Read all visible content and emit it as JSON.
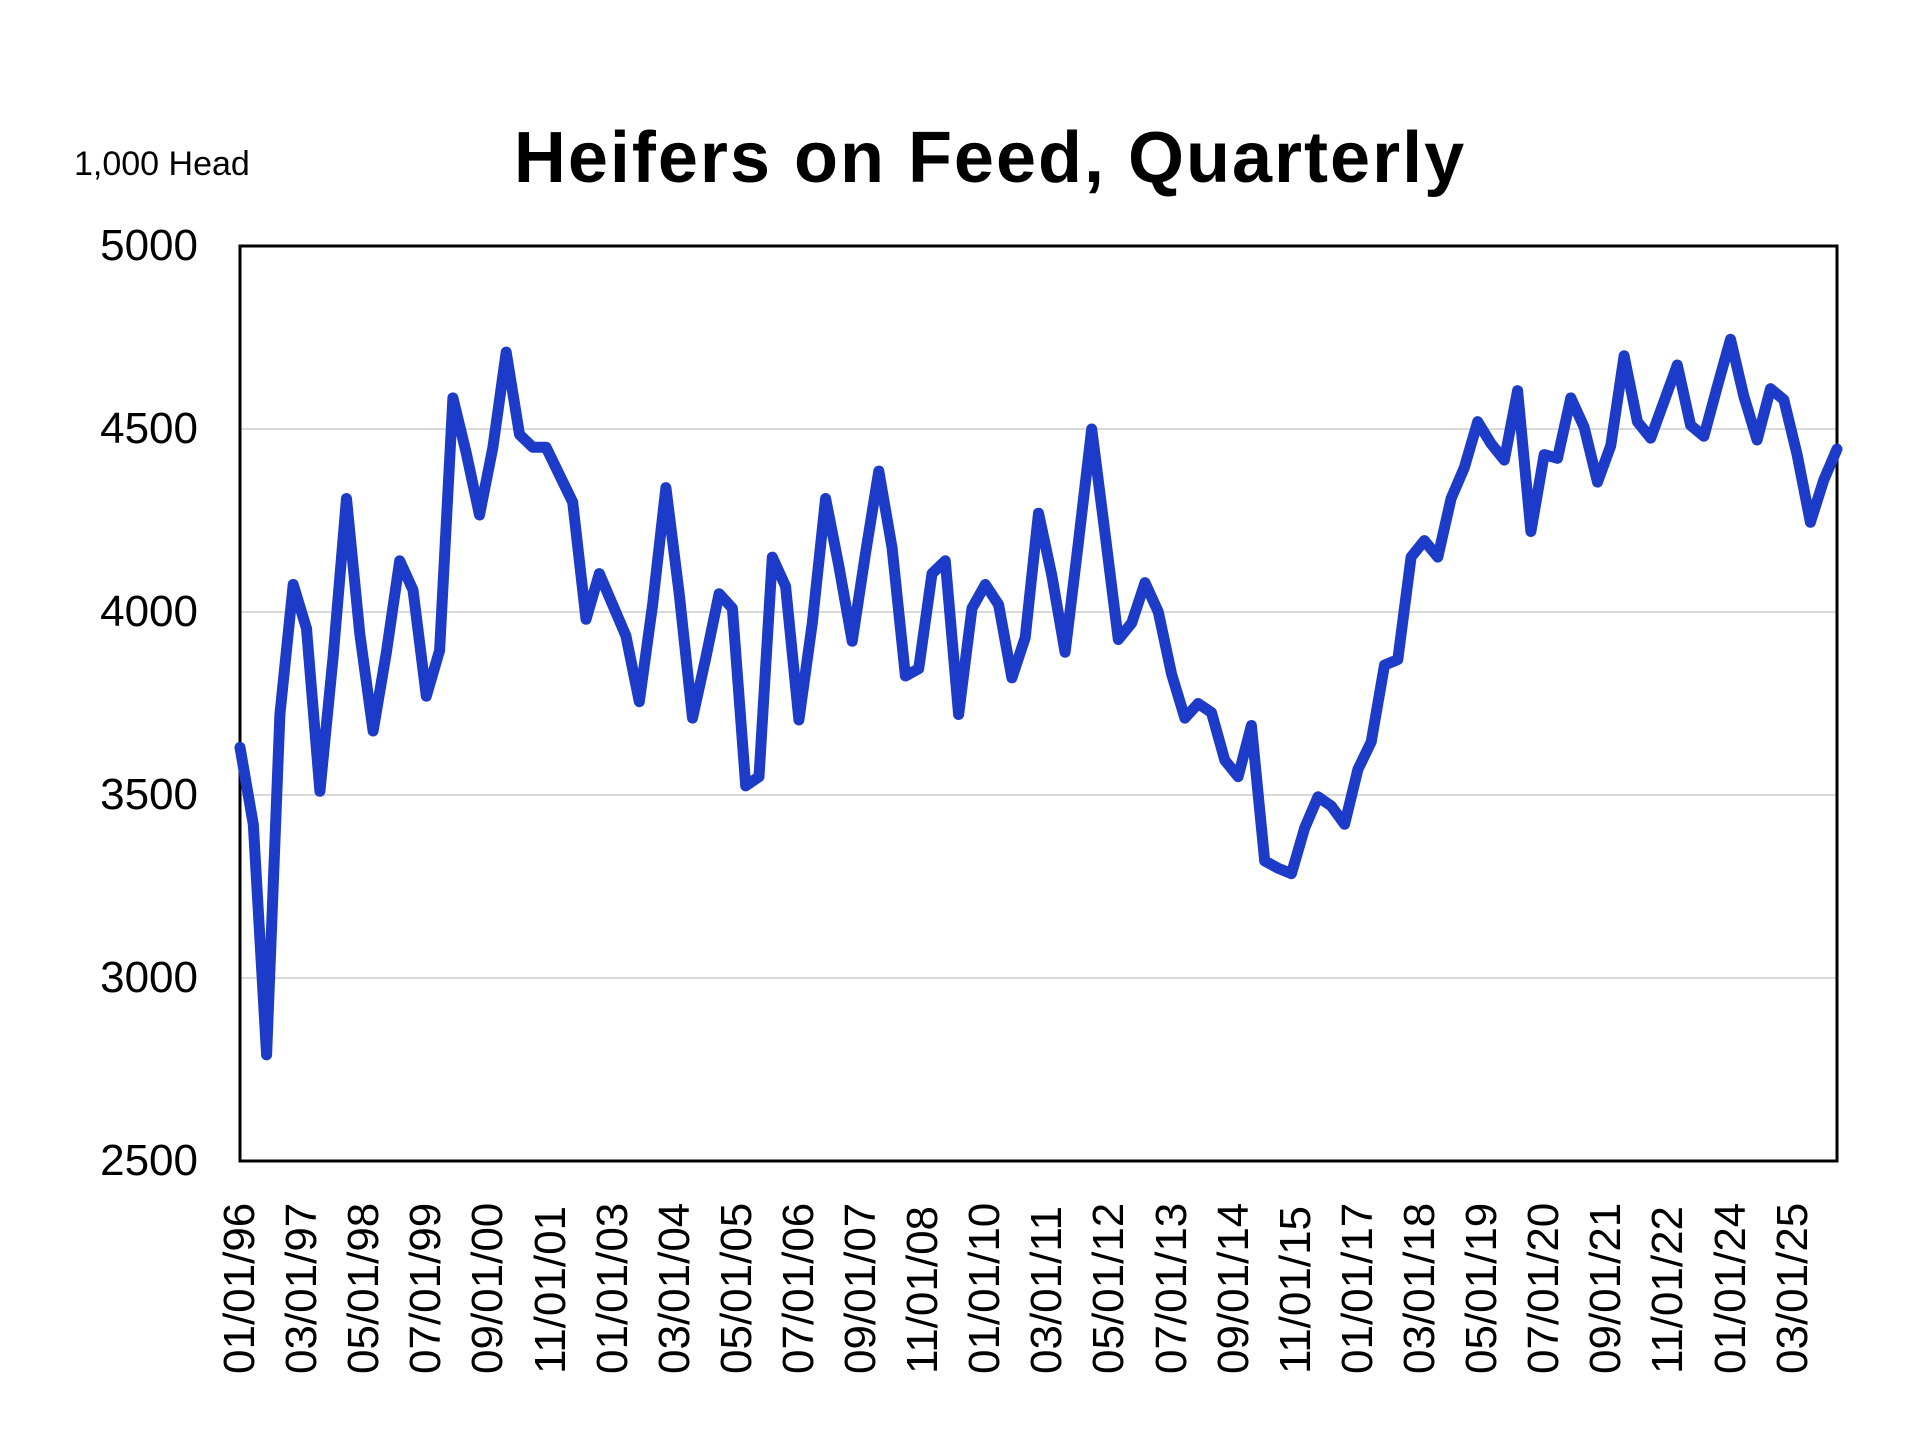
{
  "chart_data": {
    "type": "line",
    "title": "Heifers on Feed, Quarterly",
    "unit_label": "1,000 Head",
    "xlabel": "",
    "ylabel": "1,000 Head",
    "ylim": [
      2500,
      5000
    ],
    "y_ticks": [
      2500,
      3000,
      3500,
      4000,
      4500,
      5000
    ],
    "grid": "horizontal",
    "legend": "none",
    "line_color": "#1c3bc8",
    "gridline_color": "#d9d9d9",
    "border_color": "#000000",
    "x_axis": {
      "start_month_index": 0,
      "end_month_index": 360,
      "tick_interval_months": 14,
      "data_interval_months": 3
    },
    "x_tick_labels": [
      "01/01/96",
      "03/01/97",
      "05/01/98",
      "07/01/99",
      "09/01/00",
      "11/01/01",
      "01/01/03",
      "03/01/04",
      "05/01/05",
      "07/01/06",
      "09/01/07",
      "11/01/08",
      "01/01/10",
      "03/01/11",
      "05/01/12",
      "07/01/13",
      "09/01/14",
      "11/01/15",
      "01/01/17",
      "03/01/18",
      "05/01/19",
      "07/01/20",
      "09/01/21",
      "11/01/22",
      "01/01/24",
      "03/01/25"
    ],
    "series": [
      {
        "name": "Heifers on Feed",
        "dates": [
          "01/01/96",
          "04/01/96",
          "07/01/96",
          "10/01/96",
          "01/01/97",
          "04/01/97",
          "07/01/97",
          "10/01/97",
          "01/01/98",
          "04/01/98",
          "07/01/98",
          "10/01/98",
          "01/01/99",
          "04/01/99",
          "07/01/99",
          "10/01/99",
          "01/01/00",
          "04/01/00",
          "07/01/00",
          "10/01/00",
          "01/01/01",
          "04/01/01",
          "07/01/01",
          "10/01/01",
          "01/01/02",
          "04/01/02",
          "07/01/02",
          "10/01/02",
          "01/01/03",
          "04/01/03",
          "07/01/03",
          "10/01/03",
          "01/01/04",
          "04/01/04",
          "07/01/04",
          "10/01/04",
          "01/01/05",
          "04/01/05",
          "07/01/05",
          "10/01/05",
          "01/01/06",
          "04/01/06",
          "07/01/06",
          "10/01/06",
          "01/01/07",
          "04/01/07",
          "07/01/07",
          "10/01/07",
          "01/01/08",
          "04/01/08",
          "07/01/08",
          "10/01/08",
          "01/01/09",
          "04/01/09",
          "07/01/09",
          "10/01/09",
          "01/01/10",
          "04/01/10",
          "07/01/10",
          "10/01/10",
          "01/01/11",
          "04/01/11",
          "07/01/11",
          "10/01/11",
          "01/01/12",
          "04/01/12",
          "07/01/12",
          "10/01/12",
          "01/01/13",
          "04/01/13",
          "07/01/13",
          "10/01/13",
          "01/01/14",
          "04/01/14",
          "07/01/14",
          "10/01/14",
          "01/01/15",
          "04/01/15",
          "07/01/15",
          "10/01/15",
          "01/01/16",
          "04/01/16",
          "07/01/16",
          "10/01/16",
          "01/01/17",
          "04/01/17",
          "07/01/17",
          "10/01/17",
          "01/01/18",
          "04/01/18",
          "07/01/18",
          "10/01/18",
          "01/01/19",
          "04/01/19",
          "07/01/19",
          "10/01/19",
          "01/01/20",
          "04/01/20",
          "07/01/20",
          "10/01/20",
          "01/01/21",
          "04/01/21",
          "07/01/21",
          "10/01/21",
          "01/01/22",
          "04/01/22",
          "07/01/22",
          "10/01/22",
          "01/01/23",
          "04/01/23",
          "07/01/23",
          "10/01/23",
          "01/01/24",
          "04/01/24",
          "07/01/24",
          "10/01/24",
          "01/01/25",
          "04/01/25",
          "07/01/25",
          "10/01/25",
          "01/01/26"
        ],
        "values": [
          3630,
          3420,
          2790,
          3720,
          4075,
          3955,
          3510,
          3880,
          4310,
          3940,
          3675,
          3890,
          4140,
          4060,
          3770,
          3895,
          4585,
          4435,
          4265,
          4450,
          4710,
          4485,
          4450,
          4450,
          4375,
          4300,
          3980,
          4105,
          4020,
          3935,
          3755,
          4020,
          4340,
          4050,
          3710,
          3875,
          4050,
          4010,
          3525,
          3550,
          4150,
          4070,
          3705,
          3970,
          4310,
          4125,
          3920,
          4160,
          4385,
          4175,
          3825,
          3845,
          4105,
          4140,
          3720,
          4010,
          4075,
          4020,
          3820,
          3930,
          4270,
          4100,
          3890,
          4190,
          4500,
          4215,
          3925,
          3970,
          4080,
          4000,
          3830,
          3710,
          3750,
          3725,
          3595,
          3550,
          3690,
          3320,
          3300,
          3285,
          3410,
          3495,
          3470,
          3420,
          3570,
          3645,
          3855,
          3870,
          4150,
          4195,
          4150,
          4310,
          4395,
          4520,
          4460,
          4415,
          4605,
          4220,
          4430,
          4420,
          4585,
          4505,
          4355,
          4455,
          4700,
          4520,
          4475,
          4575,
          4675,
          4510,
          4480,
          4615,
          4745,
          4590,
          4470,
          4610,
          4580,
          4430,
          4245,
          4360,
          4445
        ]
      }
    ]
  }
}
